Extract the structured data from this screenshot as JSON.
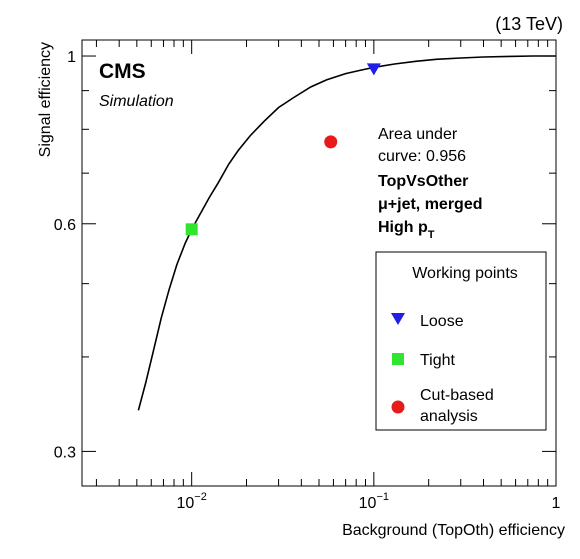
{
  "energy_label": "(13 TeV)",
  "experiment": "CMS",
  "sublabel": "Simulation",
  "annotations": {
    "auc_line1": "Area under",
    "auc_line2": "curve: 0.956",
    "tagger": "TopVsOther",
    "channel": "μ+jet, merged",
    "regime_prefix": "High p",
    "regime_sub": "T"
  },
  "chart_data": {
    "type": "line",
    "xlabel": "Background (TopOth) efficiency",
    "ylabel": "Signal efficiency",
    "xscale": "log",
    "yscale": "log",
    "xlim": [
      0.0025,
      1
    ],
    "ylim": [
      0.27,
      1.05
    ],
    "x_ticks": [
      {
        "value": 0.01,
        "base": "10",
        "exp": "−2"
      },
      {
        "value": 0.1,
        "base": "10",
        "exp": "−1"
      },
      {
        "value": 1,
        "base": "1",
        "exp": ""
      }
    ],
    "y_ticks": [
      {
        "value": 0.3,
        "label": "0.3"
      },
      {
        "value": 0.6,
        "label": "0.6"
      },
      {
        "value": 1,
        "label": "1"
      }
    ],
    "series": [
      {
        "color": "#000000",
        "x": [
          0.0051,
          0.0056,
          0.0062,
          0.0068,
          0.0075,
          0.0083,
          0.0092,
          0.01,
          0.011,
          0.0125,
          0.014,
          0.016,
          0.018,
          0.021,
          0.025,
          0.03,
          0.036,
          0.045,
          0.055,
          0.07,
          0.085,
          0.1,
          0.13,
          0.17,
          0.22,
          0.3,
          0.4,
          0.55,
          0.75,
          1.0
        ],
        "y": [
          0.34,
          0.37,
          0.41,
          0.45,
          0.49,
          0.53,
          0.565,
          0.59,
          0.615,
          0.65,
          0.68,
          0.72,
          0.75,
          0.785,
          0.82,
          0.855,
          0.88,
          0.91,
          0.93,
          0.948,
          0.958,
          0.966,
          0.976,
          0.984,
          0.99,
          0.994,
          0.997,
          0.999,
          1.0,
          1.0
        ]
      }
    ],
    "points": [
      {
        "name": "Loose",
        "x": 0.1,
        "y": 0.96,
        "marker": "triangle-down",
        "color": "#1f1fe6"
      },
      {
        "name": "Tight",
        "x": 0.01,
        "y": 0.59,
        "marker": "square",
        "color": "#2ee62e"
      },
      {
        "name": "Cut-based analysis",
        "x": 0.058,
        "y": 0.77,
        "marker": "circle",
        "color": "#e61a1a"
      }
    ],
    "legend": {
      "title": "Working points",
      "position": "right",
      "entries": [
        {
          "label": "Loose",
          "marker": "triangle-down",
          "color": "#1f1fe6"
        },
        {
          "label": "Tight",
          "marker": "square",
          "color": "#2ee62e"
        },
        {
          "label_lines": [
            "Cut-based",
            "analysis"
          ],
          "marker": "circle",
          "color": "#e61a1a"
        }
      ]
    }
  }
}
